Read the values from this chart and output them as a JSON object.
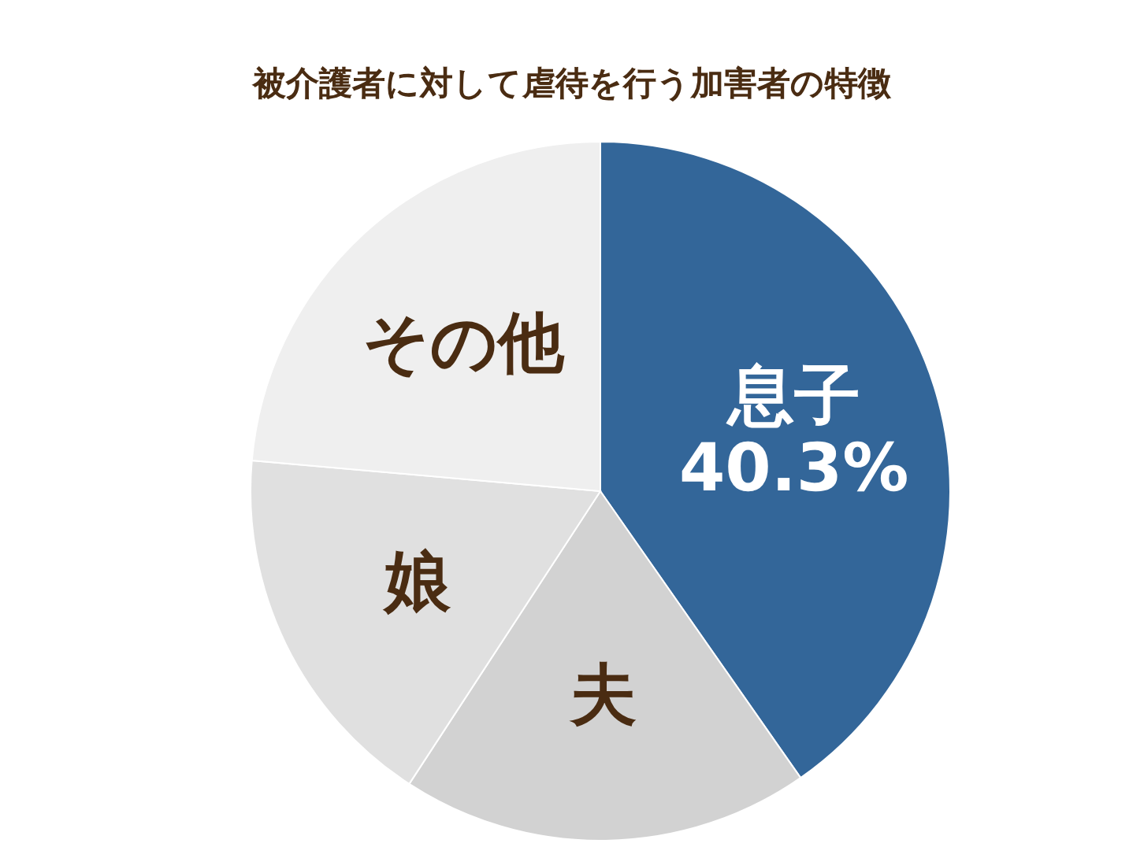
{
  "chart_data": {
    "type": "pie",
    "title": "被介護者に対して虐待を行う加害者の特徴",
    "categories": [
      "息子",
      "夫",
      "娘",
      "その他"
    ],
    "values": [
      40.3,
      18.9,
      17.2,
      23.6
    ],
    "colors": [
      "#336699",
      "#d2d2d2",
      "#e0e0e0",
      "#efefef"
    ],
    "value_labels": [
      "40.3%",
      null,
      null,
      null
    ]
  }
}
